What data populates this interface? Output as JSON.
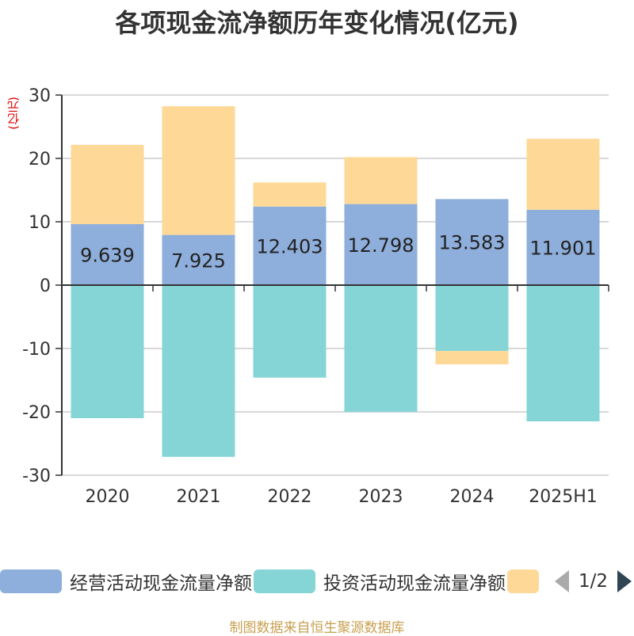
{
  "chart_data": {
    "type": "bar",
    "stacked": true,
    "title": "各项现金流净额历年变化情况(亿元)",
    "ylabel": "(亿元)",
    "categories": [
      "2020",
      "2021",
      "2022",
      "2023",
      "2024",
      "2025H1"
    ],
    "ylim": [
      -30,
      30
    ],
    "yticks": [
      30,
      20,
      10,
      0,
      -10,
      -20,
      -30
    ],
    "grid": true,
    "series": [
      {
        "name": "经营活动现金流量净额",
        "color": "#8eaedb",
        "values": [
          9.639,
          7.925,
          12.403,
          12.798,
          13.583,
          11.901
        ],
        "show_labels": true
      },
      {
        "name": "投资活动现金流量净额",
        "color": "#85d5d7",
        "values": [
          -21.0,
          -27.1,
          -14.6,
          -20.0,
          -10.4,
          -21.5
        ],
        "show_labels": false
      },
      {
        "name": "",
        "color": "#fed896",
        "values": [
          12.5,
          20.3,
          3.8,
          7.4,
          -2.1,
          11.2
        ],
        "show_labels": false
      }
    ]
  },
  "legend": {
    "page": "1/2"
  },
  "source": "制图数据来自恒生聚源数据库"
}
